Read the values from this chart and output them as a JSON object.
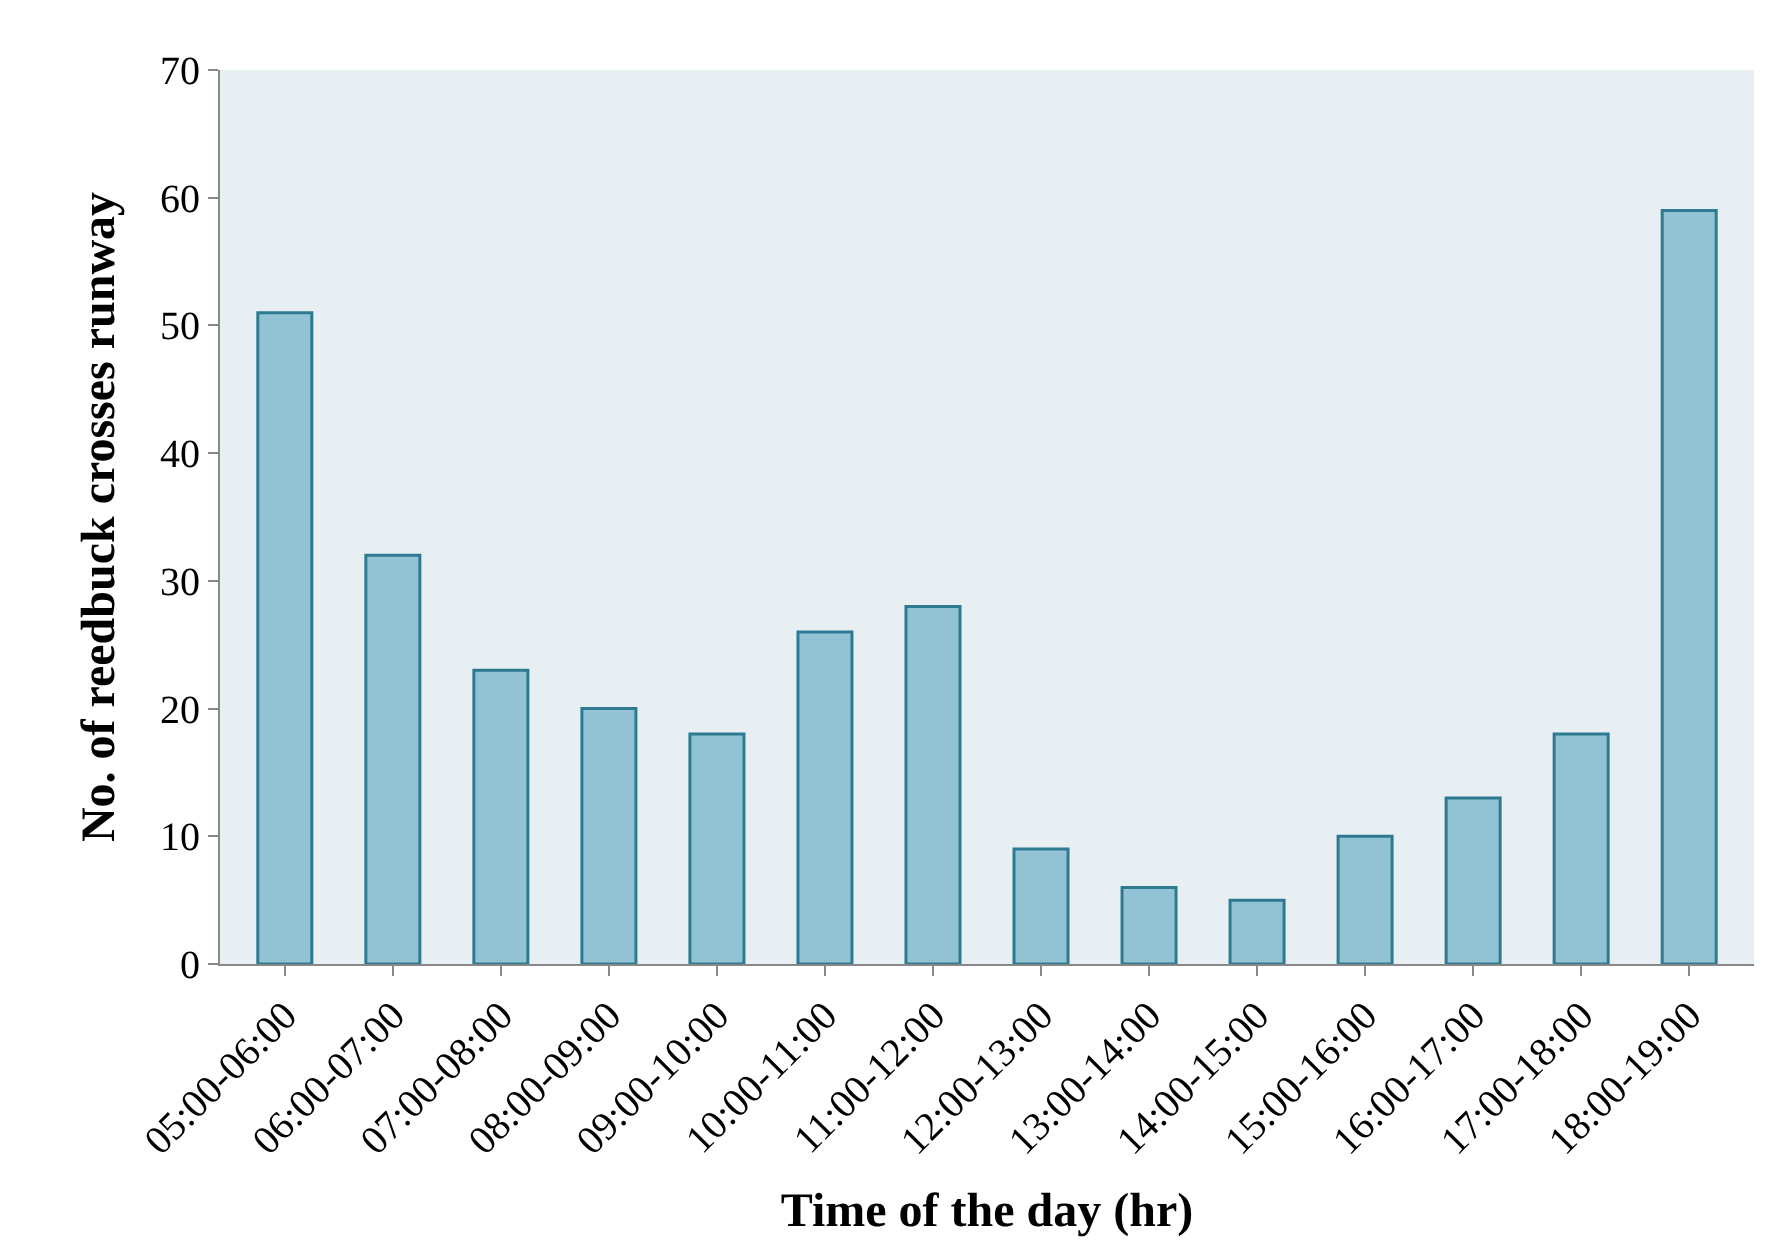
{
  "chart_data": {
    "type": "bar",
    "xlabel": "Time of the day (hr)",
    "ylabel": "No. of reedbuck crosses runway",
    "categories": [
      "05:00-06:00",
      "06:00-07:00",
      "07:00-08:00",
      "08:00-09:00",
      "09:00-10:00",
      "10:00-11:00",
      "11:00-12:00",
      "12:00-13:00",
      "13:00-14:00",
      "14:00-15:00",
      "15:00-16:00",
      "16:00-17:00",
      "17:00-18:00",
      "18:00-19:00"
    ],
    "values": [
      51,
      32,
      23,
      20,
      18,
      26,
      28,
      9,
      6,
      5,
      10,
      13,
      18,
      59
    ],
    "color": "#92c3d4",
    "ylim": [
      0,
      70
    ],
    "yticks": [
      0,
      10,
      20,
      30,
      40,
      50,
      60,
      70
    ],
    "grid": false
  }
}
